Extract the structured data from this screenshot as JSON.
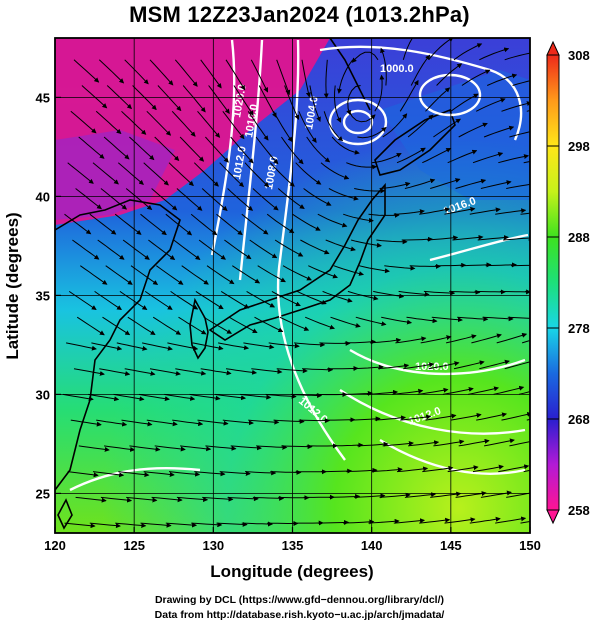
{
  "title": "MSM 12Z23Jan2024 (1013.2hPa)",
  "x_axis": {
    "label": "Longitude (degrees)",
    "range": [
      120,
      150
    ],
    "ticks": [
      120,
      125,
      130,
      135,
      140,
      145,
      150
    ]
  },
  "y_axis": {
    "label": "Latitude  (degrees)",
    "range": [
      23,
      48
    ],
    "ticks": [
      25,
      30,
      35,
      40,
      45
    ]
  },
  "colorbar": {
    "range": [
      258,
      308
    ],
    "tick_labels": [
      "308",
      "298",
      "288",
      "278",
      "268",
      "258"
    ],
    "colors": [
      "#ff1493",
      "#b21ad6",
      "#2a1fd0",
      "#1a6ae0",
      "#19d6e6",
      "#1de07a",
      "#3ee21f",
      "#c6f21a",
      "#ffe619",
      "#ff9a1a",
      "#ee2a1a"
    ]
  },
  "contours": {
    "labels": [
      "1000.0",
      "1020.0",
      "1016.0",
      "1012.0",
      "1008.0",
      "1004.0",
      "1012.0",
      "1012.0",
      "1016.0",
      "1020.0"
    ]
  },
  "credits": {
    "line1": "Drawing by DCL (https://www.gfd−dennou.org/library/dcl/)",
    "line2": "Data from http://database.rish.kyoto−u.ac.jp/arch/jmadata/"
  }
}
